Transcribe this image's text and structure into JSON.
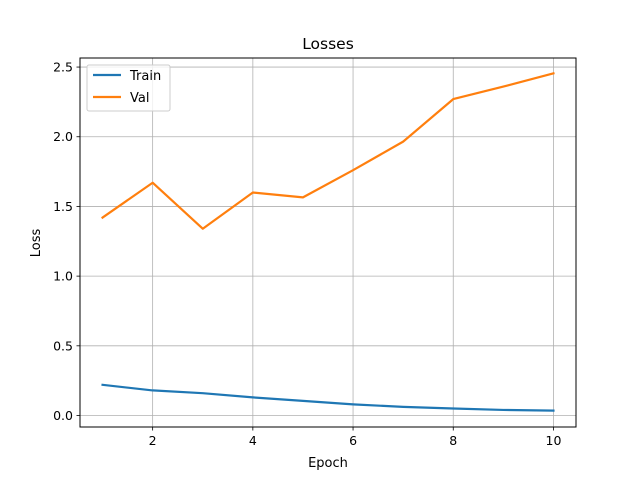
{
  "chart_data": {
    "type": "line",
    "title": "Losses",
    "xlabel": "Epoch",
    "ylabel": "Loss",
    "x": [
      1,
      2,
      3,
      4,
      5,
      6,
      7,
      8,
      9,
      10
    ],
    "xlim": [
      0.55,
      10.45
    ],
    "ylim": [
      -0.0825,
      2.565
    ],
    "xticks": [
      2,
      4,
      6,
      8,
      10
    ],
    "yticks": [
      0.0,
      0.5,
      1.0,
      1.5,
      2.0,
      2.5
    ],
    "xtick_labels": [
      "2",
      "4",
      "6",
      "8",
      "10"
    ],
    "ytick_labels": [
      "0.0",
      "0.5",
      "1.0",
      "1.5",
      "2.0",
      "2.5"
    ],
    "grid": true,
    "legend_position": "top-left",
    "series": [
      {
        "name": "Train",
        "color": "#1f77b4",
        "values": [
          0.22,
          0.18,
          0.16,
          0.13,
          0.105,
          0.08,
          0.062,
          0.05,
          0.04,
          0.035
        ]
      },
      {
        "name": "Val",
        "color": "#ff7f0e",
        "values": [
          1.42,
          1.67,
          1.34,
          1.6,
          1.565,
          1.76,
          1.965,
          2.27,
          2.36,
          2.455
        ]
      }
    ]
  }
}
